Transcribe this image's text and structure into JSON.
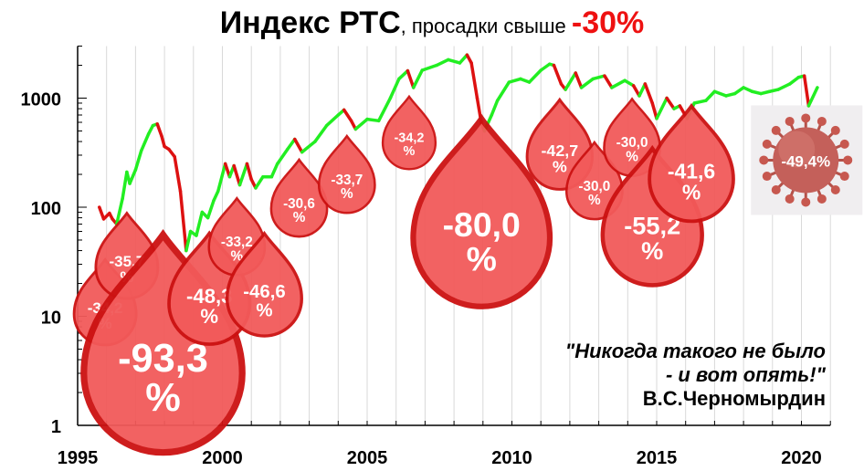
{
  "title": {
    "main": "Индекс РТС",
    "sub": ", просадки свыше ",
    "accent": "-30%"
  },
  "quote": {
    "line1": "\"Никогда такого не было",
    "line2": "- и вот опять!\"",
    "author": "В.С.Черномырдин"
  },
  "colors": {
    "up": "#22ee22",
    "down": "#dd1111",
    "drop_fill": "#f25a5a",
    "drop_stroke": "#cc1111"
  },
  "chart_data": {
    "type": "line",
    "title": "Индекс РТС, просадки свыше -30%",
    "xlabel": "",
    "ylabel": "",
    "y_scale": "log",
    "xlim": [
      1995,
      2021
    ],
    "ylim": [
      1,
      3000
    ],
    "x_ticks": [
      1995,
      2000,
      2005,
      2010,
      2015,
      2020
    ],
    "y_ticks": [
      1,
      10,
      100,
      1000
    ],
    "y_tick_labels": [
      "1",
      "10",
      "100",
      "1000"
    ],
    "grid": "vertical",
    "series": [
      {
        "points": [
          [
            1995.75,
            100,
            "d"
          ],
          [
            1995.9,
            78,
            "d"
          ],
          [
            1996.1,
            88,
            "d"
          ],
          [
            1996.2,
            78,
            "d"
          ],
          [
            1996.35,
            70,
            "u"
          ],
          [
            1996.55,
            120,
            "u"
          ],
          [
            1996.7,
            210,
            "u"
          ],
          [
            1996.8,
            165,
            "u"
          ],
          [
            1997.0,
            220,
            "u"
          ],
          [
            1997.2,
            330,
            "u"
          ],
          [
            1997.45,
            470,
            "u"
          ],
          [
            1997.6,
            560,
            "u"
          ],
          [
            1997.75,
            580,
            "d"
          ],
          [
            1997.9,
            450,
            "d"
          ],
          [
            1998.0,
            360,
            "d"
          ],
          [
            1998.15,
            340,
            "d"
          ],
          [
            1998.35,
            290,
            "d"
          ],
          [
            1998.55,
            140,
            "d"
          ],
          [
            1998.75,
            40,
            "u"
          ],
          [
            1998.9,
            60,
            "u"
          ],
          [
            1999.1,
            55,
            "u"
          ],
          [
            1999.3,
            90,
            "u"
          ],
          [
            1999.5,
            80,
            "u"
          ],
          [
            1999.7,
            115,
            "u"
          ],
          [
            1999.85,
            140,
            "u"
          ],
          [
            2000.1,
            250,
            "d"
          ],
          [
            2000.25,
            190,
            "u"
          ],
          [
            2000.4,
            240,
            "d"
          ],
          [
            2000.6,
            160,
            "u"
          ],
          [
            2000.85,
            250,
            "d"
          ],
          [
            2001.0,
            180,
            "d"
          ],
          [
            2001.15,
            150,
            "u"
          ],
          [
            2001.4,
            190,
            "u"
          ],
          [
            2001.7,
            190,
            "u"
          ],
          [
            2001.9,
            250,
            "u"
          ],
          [
            2002.25,
            340,
            "u"
          ],
          [
            2002.5,
            420,
            "d"
          ],
          [
            2002.75,
            320,
            "u"
          ],
          [
            2003.2,
            400,
            "u"
          ],
          [
            2003.6,
            560,
            "u"
          ],
          [
            2004.0,
            700,
            "u"
          ],
          [
            2004.2,
            780,
            "d"
          ],
          [
            2004.45,
            620,
            "d"
          ],
          [
            2004.6,
            520,
            "u"
          ],
          [
            2005.0,
            640,
            "u"
          ],
          [
            2005.4,
            620,
            "u"
          ],
          [
            2005.8,
            1000,
            "u"
          ],
          [
            2006.1,
            1500,
            "u"
          ],
          [
            2006.4,
            1780,
            "d"
          ],
          [
            2006.6,
            1250,
            "u"
          ],
          [
            2006.9,
            1800,
            "u"
          ],
          [
            2007.4,
            2000,
            "u"
          ],
          [
            2007.8,
            2250,
            "u"
          ],
          [
            2008.2,
            2100,
            "u"
          ],
          [
            2008.45,
            2490,
            "d"
          ],
          [
            2008.6,
            2100,
            "d"
          ],
          [
            2008.8,
            1000,
            "d"
          ],
          [
            2008.95,
            580,
            "d"
          ],
          [
            2009.05,
            500,
            "u"
          ],
          [
            2009.3,
            700,
            "u"
          ],
          [
            2009.5,
            950,
            "u"
          ],
          [
            2009.9,
            1400,
            "u"
          ],
          [
            2010.3,
            1500,
            "u"
          ],
          [
            2010.6,
            1400,
            "u"
          ],
          [
            2011.0,
            1800,
            "u"
          ],
          [
            2011.3,
            2050,
            "u"
          ],
          [
            2011.45,
            2000,
            "d"
          ],
          [
            2011.7,
            1350,
            "d"
          ],
          [
            2011.85,
            1200,
            "u"
          ],
          [
            2012.2,
            1700,
            "d"
          ],
          [
            2012.4,
            1250,
            "u"
          ],
          [
            2012.8,
            1500,
            "u"
          ],
          [
            2013.2,
            1600,
            "d"
          ],
          [
            2013.45,
            1250,
            "u"
          ],
          [
            2013.9,
            1450,
            "u"
          ],
          [
            2014.2,
            1300,
            "d"
          ],
          [
            2014.4,
            1050,
            "u"
          ],
          [
            2014.6,
            1350,
            "d"
          ],
          [
            2014.85,
            900,
            "d"
          ],
          [
            2015.0,
            650,
            "u"
          ],
          [
            2015.35,
            1000,
            "d"
          ],
          [
            2015.6,
            800,
            "u"
          ],
          [
            2015.8,
            850,
            "d"
          ],
          [
            2016.05,
            650,
            "u"
          ],
          [
            2016.3,
            900,
            "u"
          ],
          [
            2016.7,
            950,
            "u"
          ],
          [
            2017.0,
            1150,
            "u"
          ],
          [
            2017.4,
            1050,
            "u"
          ],
          [
            2017.7,
            1100,
            "u"
          ],
          [
            2018.0,
            1250,
            "u"
          ],
          [
            2018.3,
            1150,
            "u"
          ],
          [
            2018.6,
            1100,
            "u"
          ],
          [
            2018.9,
            1150,
            "u"
          ],
          [
            2019.2,
            1200,
            "u"
          ],
          [
            2019.6,
            1350,
            "u"
          ],
          [
            2019.9,
            1550,
            "u"
          ],
          [
            2020.1,
            1600,
            "d"
          ],
          [
            2020.25,
            850,
            "u"
          ],
          [
            2020.55,
            1250,
            "u"
          ]
        ]
      }
    ],
    "drawdowns": [
      {
        "label": "-34,2 %",
        "x": 1995.95,
        "y": 10.5,
        "r": 1.0
      },
      {
        "label": "-35,7 %",
        "x": 1996.7,
        "y": 28,
        "r": 1.0
      },
      {
        "label": "-93,3 %",
        "x": 1997.95,
        "y": 3.0,
        "r": 2.55
      },
      {
        "label": "-48,3 %",
        "x": 1999.55,
        "y": 13,
        "r": 1.3
      },
      {
        "label": "-33,2 %",
        "x": 2000.5,
        "y": 43,
        "r": 0.9
      },
      {
        "label": "-46,6 %",
        "x": 2001.45,
        "y": 14.5,
        "r": 1.2
      },
      {
        "label": "-30,6 %",
        "x": 2002.65,
        "y": 97,
        "r": 0.9
      },
      {
        "label": "-33,7 %",
        "x": 2004.3,
        "y": 160,
        "r": 0.9
      },
      {
        "label": "-34,2 %",
        "x": 2006.45,
        "y": 390,
        "r": 0.85
      },
      {
        "label": "-80,0 %",
        "x": 2008.95,
        "y": 52,
        "r": 2.2
      },
      {
        "label": "-42,7 %",
        "x": 2011.65,
        "y": 290,
        "r": 1.05
      },
      {
        "label": "-30,0 %",
        "x": 2012.85,
        "y": 140,
        "r": 0.9
      },
      {
        "label": "-30,0 %",
        "x": 2014.15,
        "y": 350,
        "r": 0.9
      },
      {
        "label": "-55,2 %",
        "x": 2014.85,
        "y": 55,
        "r": 1.6
      },
      {
        "label": "-41,6 %",
        "x": 2016.2,
        "y": 180,
        "r": 1.35
      }
    ],
    "covid": {
      "label": "-49,4%",
      "x": 2020.15,
      "y": 270
    }
  }
}
